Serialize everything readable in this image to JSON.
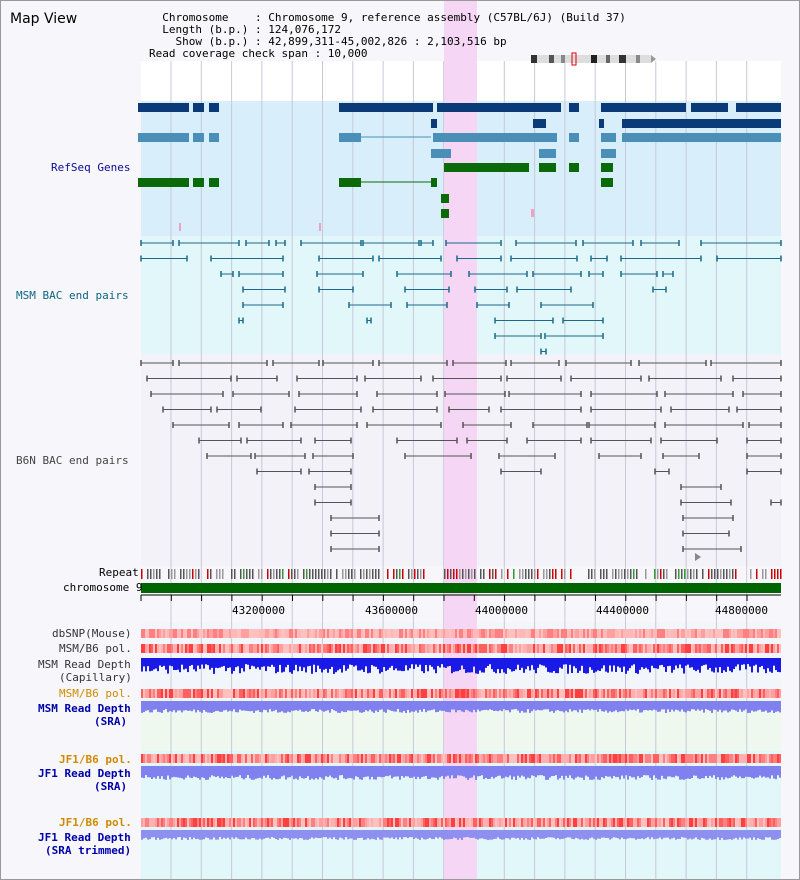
{
  "header": {
    "title": "Map View",
    "info_lines": [
      "  Chromosome    : Chromosome 9, reference assembly (C57BL/6J) (Build 37)",
      "  Length (b.p.) : 124,076,172",
      "    Show (b.p.) : 42,899,311-45,002,826 : 2,103,516 bp",
      "Read coverage check span : 10,000"
    ]
  },
  "tracks": {
    "refseq": "RefSeq Genes",
    "msm_bac": "MSM BAC end pairs",
    "b6n_bac": "B6N BAC end pairs",
    "repeat": "Repeat",
    "chromosome": "chromosome 9",
    "dbsnp": "dbSNP(Mouse)",
    "msm_b6_pol_1": "MSM/B6 pol.",
    "msm_depth_cap_1": "MSM Read Depth",
    "msm_depth_cap_2": "(Capillary)",
    "msm_b6_pol_2": "MSM/B6 pol.",
    "msm_depth_sra_1": "MSM Read Depth",
    "msm_depth_sra_2": "(SRA)",
    "jf1_b6_pol_1": "JF1/B6 pol.",
    "jf1_depth_sra_1": "JF1 Read Depth",
    "jf1_depth_sra_2": "(SRA)",
    "jf1_b6_pol_2": "JF1/B6 pol.",
    "jf1_depth_trim_1": "JF1 Read Depth",
    "jf1_depth_trim_2": "(SRA trimmed)"
  },
  "axis": {
    "ticks": [
      "43200000",
      "43600000",
      "44000000",
      "44400000",
      "44800000"
    ]
  },
  "colors": {
    "refseq_label": "#0a0a9a",
    "msm_label": "#0b6680",
    "b6n_label": "#444444",
    "orange_label": "#d08a00",
    "blue_label": "#0000aa",
    "highlight": "#f5d6f5",
    "gene_dark": "#0a3a78",
    "gene_mid": "#4a8fb8",
    "gene_green": "#0a6a0a",
    "chrom_bar": "#006400"
  }
}
